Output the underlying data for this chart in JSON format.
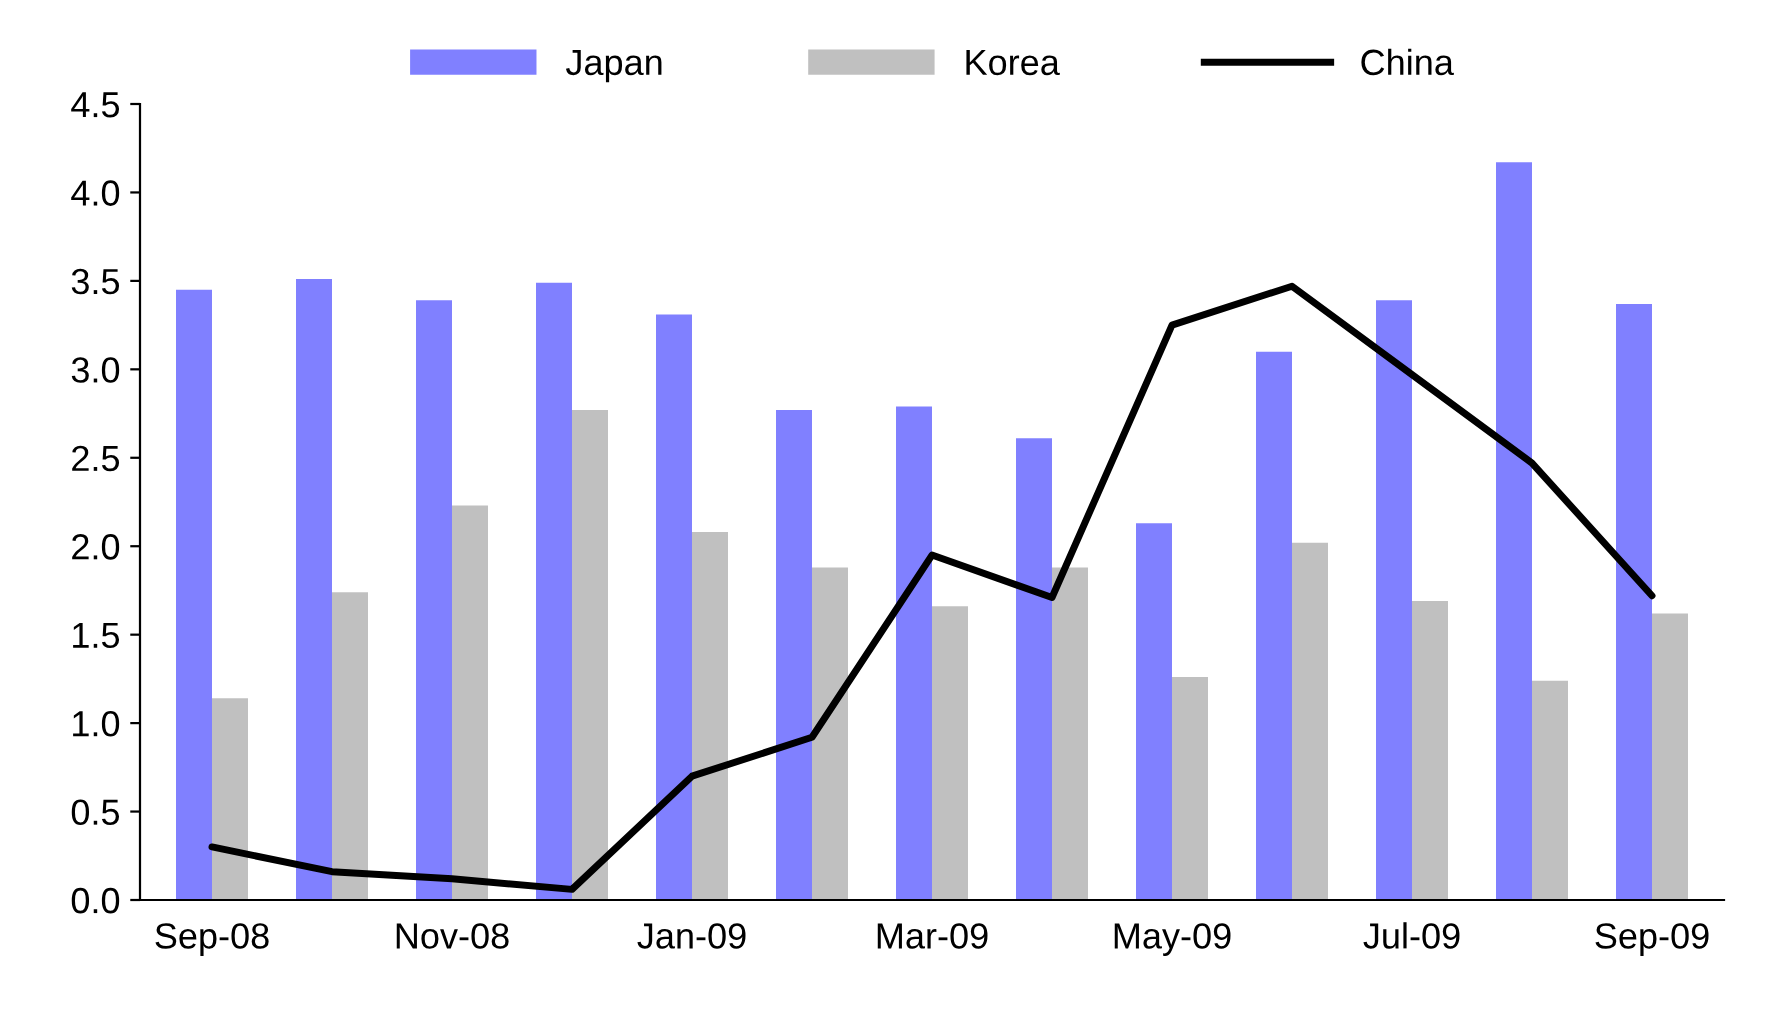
{
  "chart_data": {
    "type": "bar",
    "categories": [
      "Sep-08",
      null,
      "Nov-08",
      null,
      "Jan-09",
      null,
      "Mar-09",
      null,
      "May-09",
      null,
      "Jul-09",
      null,
      "Sep-09"
    ],
    "series": [
      {
        "name": "Japan",
        "color": "#8080ff",
        "values": [
          3.45,
          3.51,
          3.39,
          3.49,
          3.31,
          2.77,
          2.79,
          2.61,
          2.13,
          3.1,
          3.39,
          4.17,
          3.37
        ]
      },
      {
        "name": "Korea",
        "color": "#c0c0c0",
        "values": [
          1.14,
          1.74,
          2.23,
          2.77,
          2.08,
          1.88,
          1.66,
          1.88,
          1.26,
          2.02,
          1.69,
          1.24,
          1.62
        ]
      },
      {
        "name": "China",
        "type": "line",
        "color": "#000000",
        "values": [
          0.3,
          0.16,
          0.12,
          0.06,
          0.7,
          0.92,
          1.95,
          1.71,
          3.25,
          3.47,
          2.97,
          2.47,
          1.72
        ]
      }
    ],
    "ylim": [
      0,
      4.5
    ],
    "yticks": [
      {
        "value": 0,
        "label": "0.0"
      },
      {
        "value": 0.5,
        "label": "0.5"
      },
      {
        "value": 1,
        "label": "1.0"
      },
      {
        "value": 1.5,
        "label": "1.5"
      },
      {
        "value": 2,
        "label": "2.0"
      },
      {
        "value": 2.5,
        "label": "2.5"
      },
      {
        "value": 3,
        "label": "3.0"
      },
      {
        "value": 3.5,
        "label": "3.5"
      },
      {
        "value": 4,
        "label": "4.0"
      },
      {
        "value": 4.5,
        "label": "4.5"
      }
    ],
    "legend": "top",
    "grid": false
  }
}
